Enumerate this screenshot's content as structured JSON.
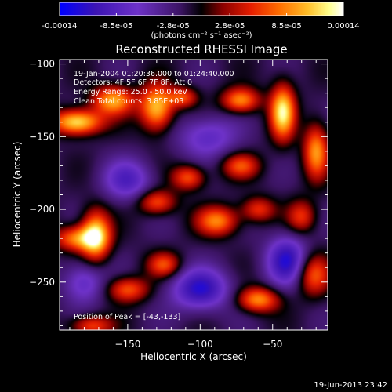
{
  "chart_data": {
    "type": "heatmap",
    "title": "Reconstructed RHESSI Image",
    "xlabel": "Heliocentric X (arcsec)",
    "ylabel": "Heliocentric Y (arcsec)",
    "xlim": [
      -197,
      -12
    ],
    "ylim": [
      -283,
      -97
    ],
    "x_ticks": [
      -150,
      -100,
      -50
    ],
    "y_ticks": [
      -100,
      -150,
      -200,
      -250
    ],
    "colorbar": {
      "ticks": [
        "-0.00014",
        "-8.5e-05",
        "-2.8e-05",
        "2.8e-05",
        "8.5e-05",
        "0.00014"
      ],
      "unit_label": "(photons cm⁻² s⁻¹ asec⁻²)",
      "range": [
        -0.00014,
        0.00014
      ]
    },
    "annotations": [
      "19-Jan-2004 01:20:36.000 to 01:24:40.000",
      "Detectors: 4F 5F 6F 7F 8F, Att 0",
      "Energy Range: 25.0 - 50.0 keV",
      "Clean    Total counts: 3.85E+03"
    ],
    "peak_label": "Position of Peak = [-43,-133]",
    "peak_position": [
      -43,
      -133
    ],
    "sources": [
      {
        "x": -185,
        "y": -140,
        "v": 1.0,
        "sx": 12,
        "sy": 6
      },
      {
        "x": -160,
        "y": -125,
        "v": 0.8,
        "sx": 10,
        "sy": 7
      },
      {
        "x": -130,
        "y": -130,
        "v": 0.9,
        "sx": 8,
        "sy": 11
      },
      {
        "x": -112,
        "y": -123,
        "v": 0.55,
        "sx": 7,
        "sy": 5
      },
      {
        "x": -72,
        "y": -125,
        "v": 0.75,
        "sx": 9,
        "sy": 6
      },
      {
        "x": -43,
        "y": -133,
        "v": 1.0,
        "sx": 6,
        "sy": 13
      },
      {
        "x": -20,
        "y": -160,
        "v": 0.75,
        "sx": 6,
        "sy": 13
      },
      {
        "x": -108,
        "y": -178,
        "v": 0.6,
        "sx": 8,
        "sy": 6
      },
      {
        "x": -72,
        "y": -170,
        "v": 0.55,
        "sx": 9,
        "sy": 6
      },
      {
        "x": -130,
        "y": -195,
        "v": 0.6,
        "sx": 9,
        "sy": 6
      },
      {
        "x": -88,
        "y": -208,
        "v": 0.7,
        "sx": 10,
        "sy": 7
      },
      {
        "x": -60,
        "y": -200,
        "v": 0.5,
        "sx": 8,
        "sy": 6
      },
      {
        "x": -185,
        "y": -220,
        "v": 0.7,
        "sx": 11,
        "sy": 6
      },
      {
        "x": -172,
        "y": -218,
        "v": 0.95,
        "sx": 7,
        "sy": 12
      },
      {
        "x": -150,
        "y": -255,
        "v": 0.6,
        "sx": 10,
        "sy": 6
      },
      {
        "x": -125,
        "y": -238,
        "v": 0.55,
        "sx": 8,
        "sy": 6
      },
      {
        "x": -60,
        "y": -262,
        "v": 0.75,
        "sx": 10,
        "sy": 6
      },
      {
        "x": -22,
        "y": -245,
        "v": 0.6,
        "sx": 8,
        "sy": 10
      },
      {
        "x": -175,
        "y": -280,
        "v": 0.55,
        "sx": 10,
        "sy": 5
      },
      {
        "x": -30,
        "y": -205,
        "v": 0.5,
        "sx": 7,
        "sy": 8
      },
      {
        "x": -150,
        "y": -180,
        "v": -0.5,
        "sx": 12,
        "sy": 10
      },
      {
        "x": -100,
        "y": -255,
        "v": -0.7,
        "sx": 14,
        "sy": 10
      },
      {
        "x": -40,
        "y": -235,
        "v": -0.7,
        "sx": 10,
        "sy": 12
      },
      {
        "x": -95,
        "y": -150,
        "v": -0.45,
        "sx": 14,
        "sy": 10
      },
      {
        "x": -180,
        "y": -250,
        "v": -0.45,
        "sx": 10,
        "sy": 10
      }
    ]
  },
  "timestamp": "19-Jun-2013 23:42",
  "colors": {
    "background": "#000000",
    "foreground": "#ffffff",
    "colormap": [
      "#0000ff",
      "#4a1fb0",
      "#7a3bd0",
      "#000000",
      "#a00000",
      "#ff3000",
      "#ff9000",
      "#ffffa0",
      "#ffffff"
    ]
  }
}
